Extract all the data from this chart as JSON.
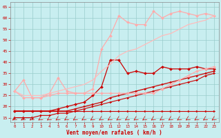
{
  "xlabel": "Vent moyen/en rafales ( km/h )",
  "xlim": [
    -0.5,
    23.5
  ],
  "ylim": [
    13,
    67
  ],
  "yticks": [
    15,
    20,
    25,
    30,
    35,
    40,
    45,
    50,
    55,
    60,
    65
  ],
  "xticks": [
    0,
    1,
    2,
    3,
    4,
    5,
    6,
    7,
    8,
    9,
    10,
    11,
    12,
    13,
    14,
    15,
    16,
    17,
    18,
    19,
    20,
    21,
    22,
    23
  ],
  "bg_color": "#c8eef0",
  "grid_color": "#99cccc",
  "series": [
    {
      "x": [
        0,
        1,
        2,
        3,
        4,
        5,
        6,
        7,
        8,
        9,
        10,
        11,
        12,
        13,
        14,
        15,
        16,
        17,
        18,
        19,
        20,
        21,
        22,
        23
      ],
      "y": [
        18,
        18,
        18,
        18,
        18,
        18,
        18,
        18,
        18,
        18,
        18,
        18,
        18,
        18,
        18,
        18,
        18,
        18,
        18,
        18,
        18,
        18,
        18,
        18
      ],
      "color": "#cc0000",
      "lw": 0.8,
      "marker": ">",
      "ms": 2.0
    },
    {
      "x": [
        0,
        1,
        2,
        3,
        4,
        5,
        6,
        7,
        8,
        9,
        10,
        11,
        12,
        13,
        14,
        15,
        16,
        17,
        18,
        19,
        20,
        21,
        22,
        23
      ],
      "y": [
        15,
        15,
        15,
        16,
        16,
        17,
        17,
        18,
        19,
        20,
        21,
        22,
        23,
        24,
        25,
        26,
        27,
        28,
        29,
        30,
        31,
        32,
        34,
        35
      ],
      "color": "#cc0000",
      "lw": 0.8,
      "marker": ">",
      "ms": 2.0
    },
    {
      "x": [
        0,
        1,
        2,
        3,
        4,
        5,
        6,
        7,
        8,
        9,
        10,
        11,
        12,
        13,
        14,
        15,
        16,
        17,
        18,
        19,
        20,
        21,
        22,
        23
      ],
      "y": [
        18,
        18,
        18,
        18,
        18,
        18,
        18,
        19,
        20,
        21,
        22,
        24,
        25,
        26,
        27,
        28,
        29,
        30,
        31,
        32,
        33,
        34,
        35,
        36
      ],
      "color": "#cc0000",
      "lw": 0.9,
      "marker": ">",
      "ms": 2.0
    },
    {
      "x": [
        0,
        1,
        2,
        3,
        4,
        5,
        6,
        7,
        8,
        9,
        10,
        11,
        12,
        13,
        14,
        15,
        16,
        17,
        18,
        19,
        20,
        21,
        22,
        23
      ],
      "y": [
        18,
        18,
        18,
        18,
        18,
        19,
        20,
        21,
        22,
        25,
        29,
        41,
        41,
        35,
        36,
        35,
        35,
        38,
        37,
        37,
        37,
        38,
        37,
        37
      ],
      "color": "#cc0000",
      "lw": 0.9,
      "marker": "D",
      "ms": 2.0
    },
    {
      "x": [
        0,
        1,
        2,
        3,
        4,
        5,
        6,
        7,
        8,
        9,
        10,
        11,
        12,
        13,
        14,
        15,
        16,
        17,
        18,
        19,
        20,
        21,
        22,
        23
      ],
      "y": [
        27,
        32,
        24,
        24,
        26,
        33,
        27,
        26,
        26,
        28,
        46,
        52,
        61,
        58,
        57,
        57,
        63,
        60,
        62,
        63,
        62,
        61,
        62,
        61
      ],
      "color": "#ffaaaa",
      "lw": 0.9,
      "marker": "D",
      "ms": 2.0
    },
    {
      "x": [
        0,
        1,
        2,
        3,
        4,
        5,
        6,
        7,
        8,
        9,
        10,
        11,
        12,
        13,
        14,
        15,
        16,
        17,
        18,
        19,
        20,
        21,
        22,
        23
      ],
      "y": [
        27,
        24,
        24,
        24,
        25,
        26,
        26,
        26,
        26,
        26,
        26,
        26,
        26,
        26,
        26,
        26,
        26,
        28,
        30,
        32,
        34,
        36,
        37,
        38
      ],
      "color": "#ffaaaa",
      "lw": 0.9,
      "marker": "D",
      "ms": 2.0
    },
    {
      "x": [
        0,
        1,
        2,
        3,
        4,
        5,
        6,
        7,
        8,
        9,
        10,
        11,
        12,
        13,
        14,
        15,
        16,
        17,
        18,
        19,
        20,
        21,
        22,
        23
      ],
      "y": [
        27,
        25,
        25,
        25,
        26,
        27,
        28,
        29,
        30,
        32,
        36,
        39,
        43,
        45,
        46,
        48,
        50,
        52,
        53,
        55,
        57,
        58,
        59,
        61
      ],
      "color": "#ffbbbb",
      "lw": 0.9,
      "marker": null,
      "ms": 0
    }
  ]
}
